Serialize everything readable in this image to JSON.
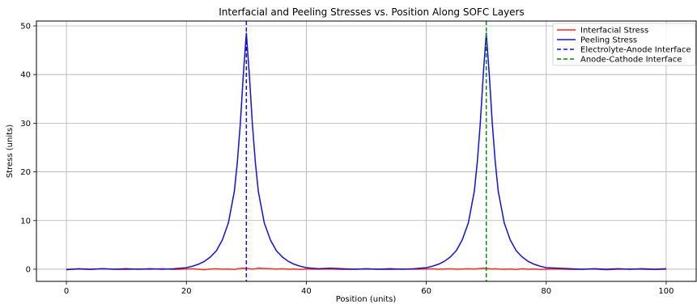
{
  "chart_data": {
    "type": "line",
    "title": "Interfacial and Peeling Stresses vs. Position Along SOFC Layers",
    "xlabel": "Position (units)",
    "ylabel": "Stress (units)",
    "xlim": [
      -5,
      105
    ],
    "ylim": [
      -2.5,
      51
    ],
    "x_ticks": [
      0,
      20,
      40,
      60,
      80,
      100
    ],
    "y_ticks": [
      0,
      10,
      20,
      30,
      40,
      50
    ],
    "grid": true,
    "legend_position": "top-right",
    "x": [
      0,
      2,
      4,
      6,
      8,
      10,
      12,
      14,
      16,
      18,
      20,
      21,
      22,
      23,
      24,
      25,
      26,
      27,
      28,
      28.5,
      29,
      29.5,
      30,
      30.5,
      31,
      31.5,
      32,
      33,
      34,
      35,
      36,
      37,
      38,
      39,
      40,
      42,
      44,
      46,
      48,
      50,
      52,
      54,
      56,
      58,
      60,
      61,
      62,
      63,
      64,
      65,
      66,
      67,
      68,
      68.5,
      69,
      69.5,
      70,
      70.5,
      71,
      71.5,
      72,
      73,
      74,
      75,
      76,
      77,
      78,
      79,
      80,
      82,
      84,
      86,
      88,
      90,
      92,
      94,
      96,
      98,
      100
    ],
    "series": [
      {
        "name": "Interfacial Stress",
        "color": "#ff2a1a",
        "values": [
          0.0,
          0.05,
          -0.05,
          0.1,
          0.0,
          -0.05,
          0.05,
          0.0,
          0.1,
          -0.05,
          0.05,
          0.1,
          0.0,
          -0.1,
          0.05,
          0.1,
          0.0,
          0.05,
          -0.05,
          0.1,
          0.15,
          0.2,
          0.15,
          0.1,
          0.05,
          0.1,
          0.2,
          0.15,
          0.1,
          0.05,
          0.1,
          0.0,
          0.05,
          -0.05,
          0.05,
          0.0,
          0.05,
          -0.05,
          0.0,
          0.05,
          0.0,
          -0.05,
          0.05,
          0.0,
          0.05,
          0.1,
          0.0,
          0.05,
          0.1,
          0.0,
          0.05,
          0.1,
          0.05,
          0.1,
          0.15,
          0.2,
          0.15,
          0.1,
          0.05,
          0.1,
          0.05,
          0.0,
          0.05,
          -0.05,
          0.1,
          0.0,
          0.05,
          -0.05,
          0.0,
          0.05,
          -0.05,
          0.0,
          0.05,
          -0.1,
          0.0,
          0.05,
          0.0,
          -0.05,
          0.0
        ]
      },
      {
        "name": "Peeling Stress",
        "color": "#1010dd",
        "values": [
          -0.1,
          0.1,
          0.0,
          0.1,
          0.0,
          0.1,
          0.0,
          0.1,
          0.0,
          0.1,
          0.3,
          0.6,
          1.0,
          1.6,
          2.5,
          3.8,
          6.0,
          9.5,
          16.0,
          22.0,
          30.0,
          40.0,
          48.5,
          40.0,
          30.0,
          22.0,
          16.0,
          9.5,
          6.0,
          3.8,
          2.5,
          1.6,
          1.0,
          0.6,
          0.3,
          0.1,
          0.2,
          0.1,
          0.0,
          0.1,
          0.0,
          0.1,
          0.0,
          0.1,
          0.3,
          0.6,
          1.0,
          1.6,
          2.5,
          3.8,
          6.0,
          9.5,
          16.0,
          22.0,
          30.0,
          40.0,
          48.5,
          40.0,
          30.0,
          22.0,
          16.0,
          9.5,
          6.0,
          3.8,
          2.5,
          1.6,
          1.0,
          0.6,
          0.3,
          0.2,
          0.1,
          0.0,
          0.1,
          0.0,
          0.1,
          0.0,
          0.1,
          0.0,
          0.1
        ]
      }
    ],
    "vlines": [
      {
        "name": "Electrolyte-Anode Interface",
        "x": 30,
        "color": "#1010dd",
        "style": "dashed"
      },
      {
        "name": "Anode-Cathode Interface",
        "x": 70,
        "color": "#008800",
        "style": "dashed"
      }
    ]
  }
}
